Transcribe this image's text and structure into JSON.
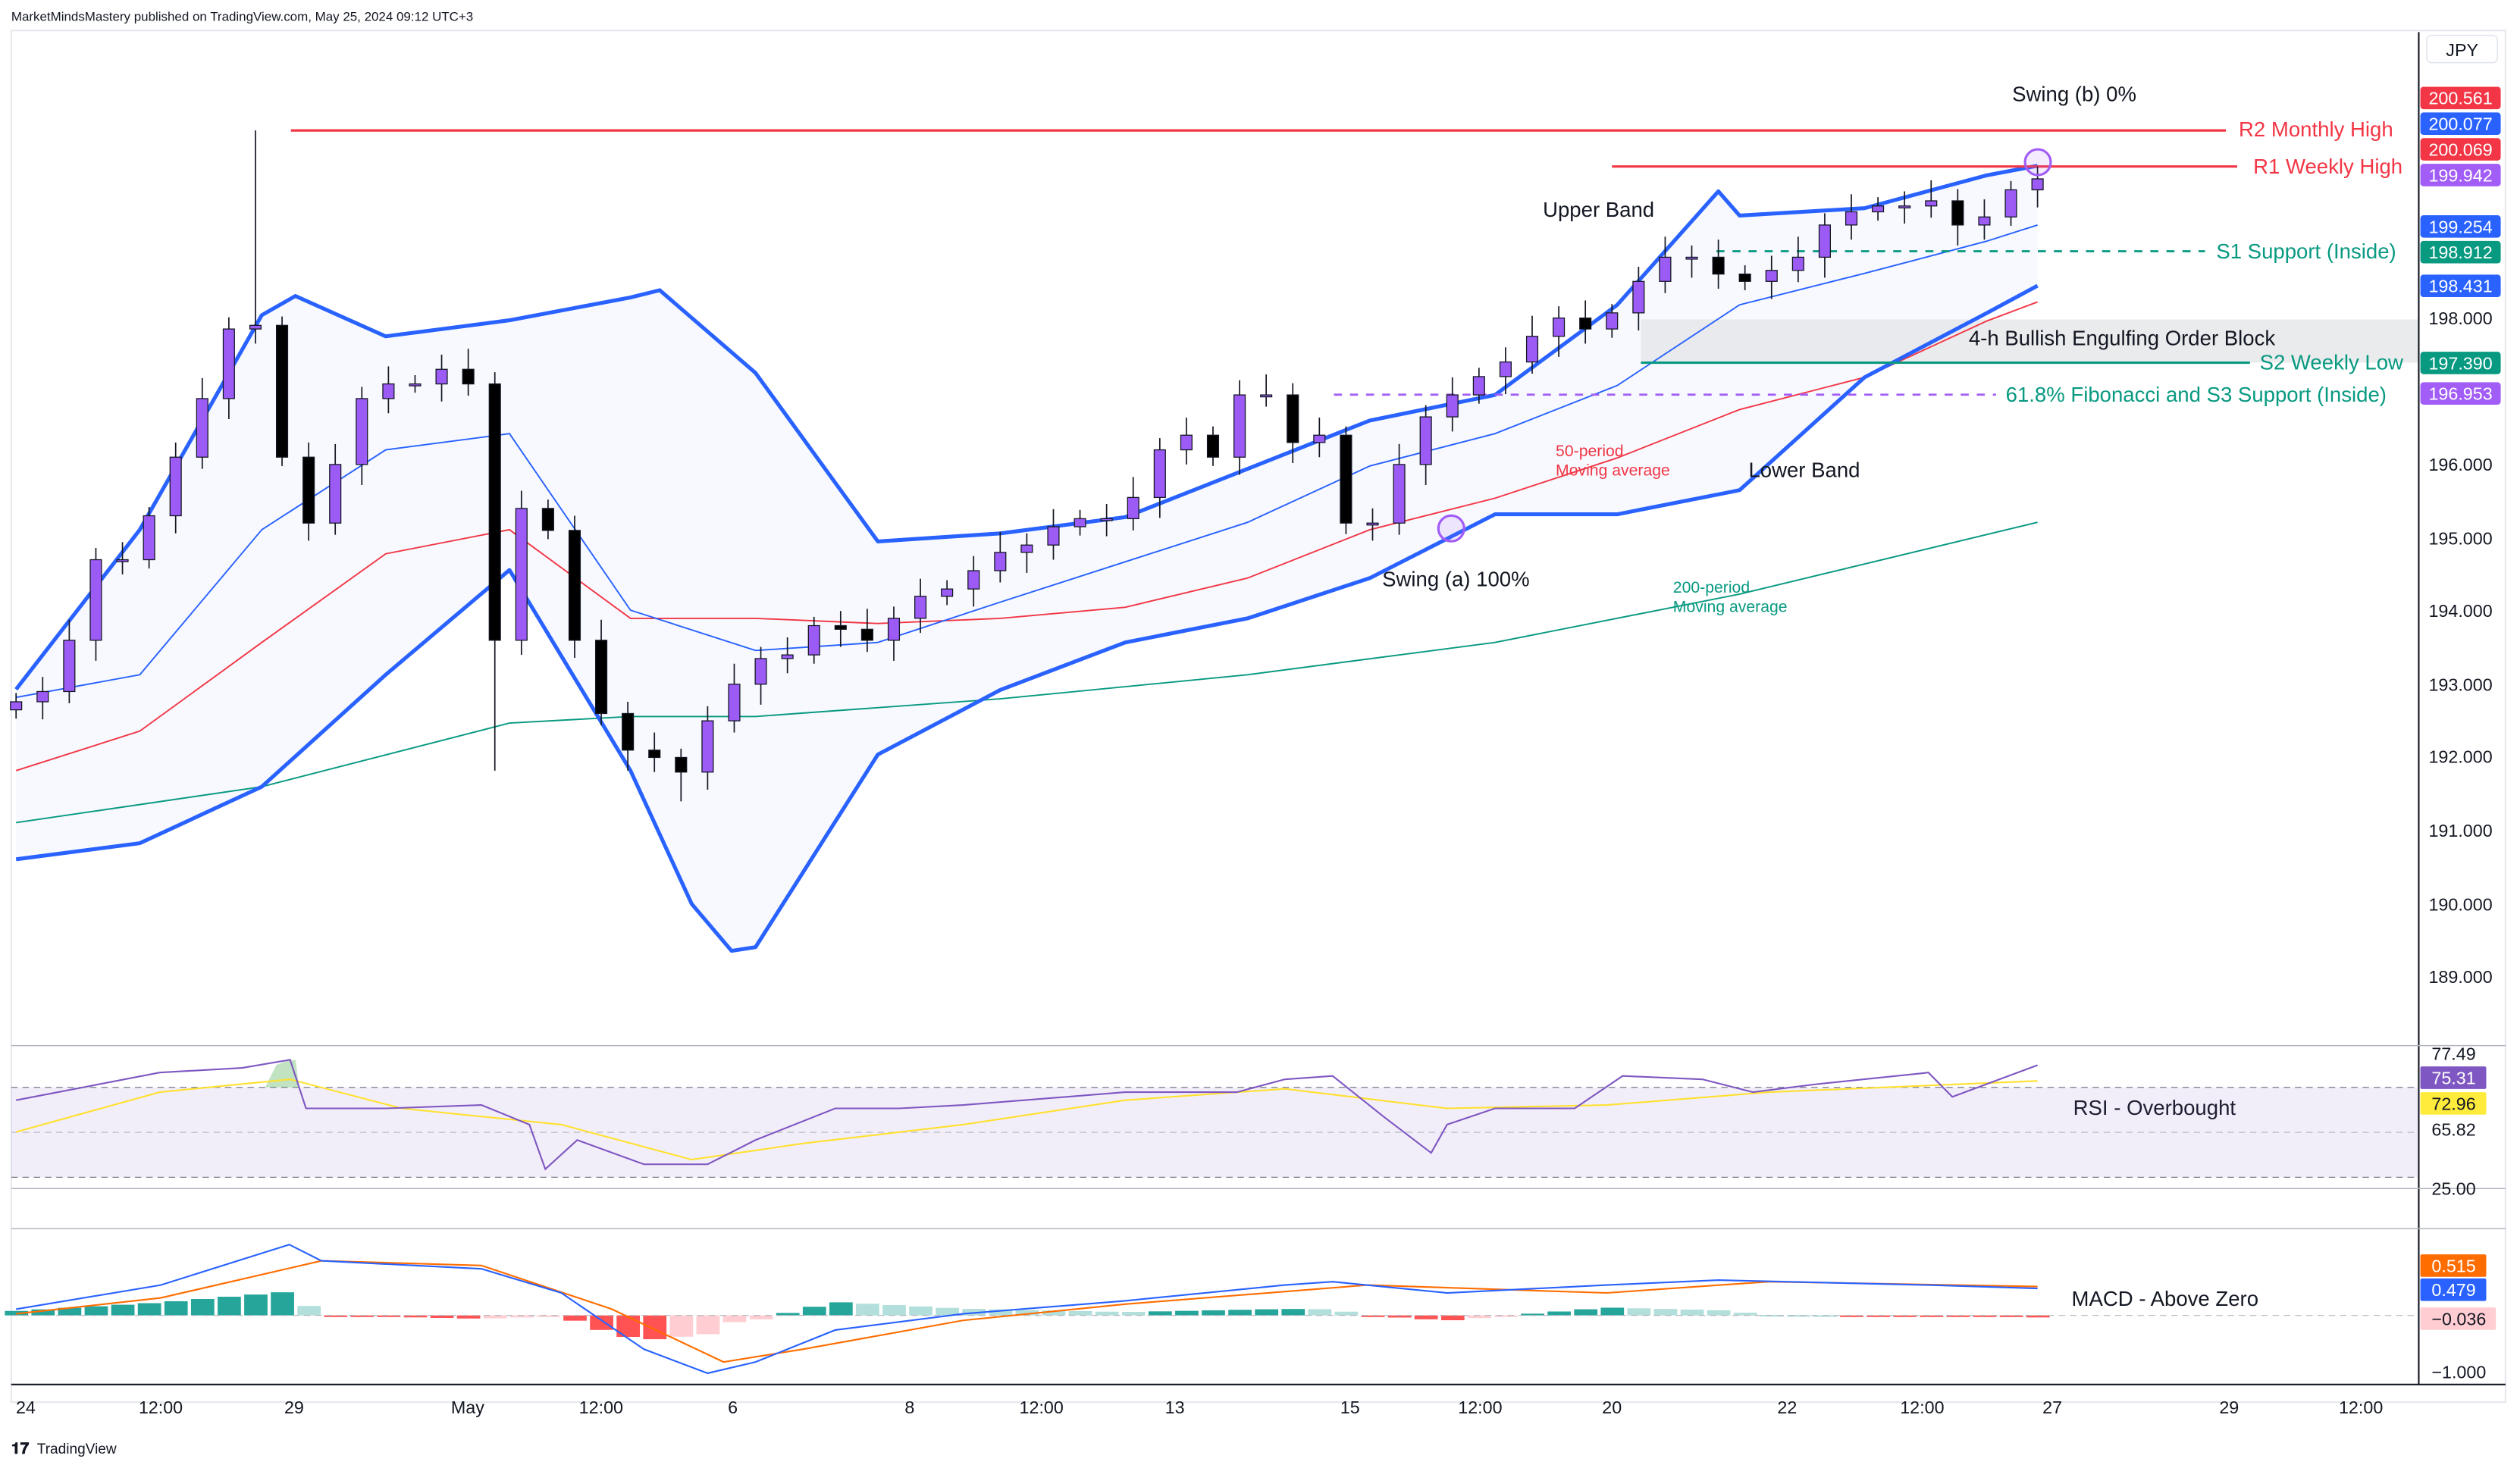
{
  "header": {
    "published": "MarketMindsMastery published on TradingView.com, May 25, 2024 09:12 UTC+3"
  },
  "footer": {
    "brand": "TradingView",
    "logo": "tradingview-logo-icon"
  },
  "price_axis": {
    "currency": "JPY",
    "ticks": [
      "198.000",
      "196.000",
      "195.000",
      "194.000",
      "193.000",
      "192.000",
      "191.000",
      "190.000",
      "189.000"
    ],
    "tags": [
      {
        "text": "200.561",
        "color": "#f23645"
      },
      {
        "text": "200.077",
        "color": "#2962ff"
      },
      {
        "text": "200.069",
        "color": "#f23645"
      },
      {
        "text": "199.942",
        "color": "#a25df7"
      },
      {
        "text": "199.254",
        "color": "#2962ff"
      },
      {
        "text": "198.912",
        "color": "#089981"
      },
      {
        "text": "198.431",
        "color": "#2962ff"
      },
      {
        "text": "197.390",
        "color": "#089981"
      },
      {
        "text": "196.953",
        "color": "#a25df7"
      }
    ]
  },
  "time_axis": [
    "24",
    "12:00",
    "29",
    "May",
    "12:00",
    "6",
    "8",
    "12:00",
    "13",
    "15",
    "12:00",
    "20",
    "22",
    "12:00",
    "27",
    "29",
    "12:00"
  ],
  "annotations": {
    "r2": "R2 Monthly High",
    "r1": "R1 Weekly High",
    "s1": "S1 Support (Inside)",
    "order_block": "4-h Bullish Engulfing Order Block",
    "s2": "S2 Weekly Low",
    "fib": "61.8% Fibonacci and S3 Support (Inside)",
    "upper_band": "Upper Band",
    "lower_band": "Lower Band",
    "swing_a": "Swing (a) 100%",
    "swing_b": "Swing (b) 0%",
    "ma50_1": "50-period",
    "ma50_2": "Moving average",
    "ma200_1": "200-period",
    "ma200_2": "Moving average",
    "rsi": "RSI - Overbought",
    "macd": "MACD - Above Zero"
  },
  "rsi_axis": {
    "ticks": [
      "77.49",
      "65.82",
      "25.00"
    ],
    "tags": [
      {
        "text": "75.31",
        "color": "#7e57c2"
      },
      {
        "text": "72.96",
        "color": "#ffeb3b"
      }
    ]
  },
  "macd_axis": {
    "ticks": [
      "−1.000"
    ],
    "tags": [
      {
        "text": "0.515",
        "color": "#ff6d00"
      },
      {
        "text": "0.479",
        "color": "#2962ff"
      },
      {
        "text": "−0.036",
        "color": "#ffcdd2"
      }
    ]
  },
  "chart_data": {
    "type": "candlestick",
    "symbol_currency": "JPY",
    "ylim": [
      188.5,
      201.3
    ],
    "levels": {
      "r2": 200.561,
      "r1": 200.069,
      "s1": 198.912,
      "s2": 197.39,
      "fib": 196.953,
      "order_block": [
        197.39,
        197.98
      ]
    },
    "closes": [
      192.76,
      192.9,
      193.6,
      194.7,
      194.7,
      195.3,
      196.1,
      196.9,
      197.85,
      197.9,
      196.1,
      195.2,
      196.0,
      196.9,
      197.1,
      197.1,
      197.3,
      197.1,
      193.6,
      195.4,
      195.1,
      193.6,
      192.6,
      192.1,
      192.0,
      191.8,
      192.5,
      193.0,
      193.35,
      193.4,
      193.8,
      193.75,
      193.6,
      193.9,
      194.2,
      194.3,
      194.55,
      194.8,
      194.9,
      195.15,
      195.26,
      195.26,
      195.55,
      196.2,
      196.4,
      196.1,
      196.95,
      196.95,
      196.3,
      196.4,
      195.2,
      195.2,
      196.0,
      196.65,
      196.95,
      197.2,
      197.4,
      197.75,
      198.0,
      197.85,
      198.07,
      198.5,
      198.83,
      198.83,
      198.6,
      198.5,
      198.65,
      198.83,
      199.27,
      199.45,
      199.53,
      199.53,
      199.6,
      199.27,
      199.38,
      199.75,
      199.9
    ],
    "first_open": 192.65,
    "wick_extremes": [
      {
        "i": 9,
        "high": 200.561
      },
      {
        "i": 18,
        "low": 191.82
      },
      {
        "i": 25,
        "low": 191.4
      },
      {
        "i": 50,
        "low": 195.05
      },
      {
        "i": 76,
        "high": 200.069
      }
    ],
    "bollinger": {
      "upper": [
        [
          0,
          192.93
        ],
        [
          4.65,
          195.11
        ],
        [
          9.24,
          198.04
        ],
        [
          10.5,
          198.3
        ],
        [
          13.9,
          197.75
        ],
        [
          18.55,
          197.97
        ],
        [
          23.1,
          198.28
        ],
        [
          24.2,
          198.38
        ],
        [
          27.8,
          197.25
        ],
        [
          32.4,
          194.95
        ],
        [
          37,
          195.06
        ],
        [
          41.7,
          195.28
        ],
        [
          46.3,
          195.94
        ],
        [
          50.9,
          196.6
        ],
        [
          55.6,
          196.95
        ],
        [
          60.2,
          198.18
        ],
        [
          64,
          199.73
        ],
        [
          64.8,
          199.4
        ],
        [
          69.5,
          199.5
        ],
        [
          74.1,
          199.95
        ],
        [
          76,
          200.08
        ]
      ],
      "middle": [
        [
          0,
          192.82
        ],
        [
          4.65,
          193.13
        ],
        [
          9.24,
          195.11
        ],
        [
          13.9,
          196.2
        ],
        [
          18.55,
          196.42
        ],
        [
          23.1,
          194.01
        ],
        [
          27.8,
          193.46
        ],
        [
          32.4,
          193.57
        ],
        [
          37,
          194.12
        ],
        [
          41.7,
          194.67
        ],
        [
          46.3,
          195.21
        ],
        [
          50.9,
          195.98
        ],
        [
          55.6,
          196.42
        ],
        [
          60.2,
          197.08
        ],
        [
          64.8,
          198.18
        ],
        [
          69.5,
          198.61
        ],
        [
          74.1,
          199.05
        ],
        [
          76,
          199.27
        ]
      ],
      "lower": [
        [
          0,
          190.61
        ],
        [
          4.65,
          190.83
        ],
        [
          9.24,
          191.6
        ],
        [
          13.9,
          193.13
        ],
        [
          18.55,
          194.56
        ],
        [
          23.1,
          191.82
        ],
        [
          25.4,
          190.0
        ],
        [
          26.9,
          189.36
        ],
        [
          27.8,
          189.41
        ],
        [
          32.4,
          192.04
        ],
        [
          37,
          192.92
        ],
        [
          41.7,
          193.57
        ],
        [
          46.3,
          193.9
        ],
        [
          50.9,
          194.45
        ],
        [
          55.6,
          195.32
        ],
        [
          60.2,
          195.32
        ],
        [
          64.8,
          195.65
        ],
        [
          69.5,
          197.19
        ],
        [
          74.1,
          198.07
        ],
        [
          76,
          198.44
        ]
      ]
    },
    "ma50": [
      [
        0,
        191.82
      ],
      [
        4.65,
        192.36
      ],
      [
        9.24,
        193.57
      ],
      [
        13.9,
        194.78
      ],
      [
        18.55,
        195.11
      ],
      [
        23.1,
        193.9
      ],
      [
        27.8,
        193.9
      ],
      [
        32.4,
        193.83
      ],
      [
        37,
        193.9
      ],
      [
        41.7,
        194.05
      ],
      [
        46.3,
        194.45
      ],
      [
        50.9,
        195.11
      ],
      [
        55.6,
        195.54
      ],
      [
        60.2,
        196.09
      ],
      [
        64.8,
        196.75
      ],
      [
        69.5,
        197.19
      ],
      [
        74.1,
        197.96
      ],
      [
        76,
        198.22
      ]
    ],
    "ma200": [
      [
        0,
        191.11
      ],
      [
        9.24,
        191.6
      ],
      [
        18.55,
        192.47
      ],
      [
        23.1,
        192.56
      ],
      [
        27.8,
        192.56
      ],
      [
        37,
        192.8
      ],
      [
        46.3,
        193.13
      ],
      [
        55.6,
        193.57
      ],
      [
        64.8,
        194.23
      ],
      [
        76,
        195.21
      ]
    ],
    "rsi": [
      [
        0,
        70.1
      ],
      [
        5.4,
        74.2
      ],
      [
        8.5,
        74.9
      ],
      [
        10.3,
        76.1
      ],
      [
        10.9,
        68.9
      ],
      [
        13.9,
        68.9
      ],
      [
        17.5,
        69.4
      ],
      [
        19.3,
        66.5
      ],
      [
        19.9,
        59.9
      ],
      [
        21.1,
        64.2
      ],
      [
        23.6,
        60.6
      ],
      [
        26,
        60.6
      ],
      [
        27.8,
        64.2
      ],
      [
        30.8,
        68.9
      ],
      [
        33.2,
        68.9
      ],
      [
        35.6,
        69.4
      ],
      [
        41.7,
        71.3
      ],
      [
        45.9,
        71.3
      ],
      [
        47.7,
        73.2
      ],
      [
        49.5,
        73.7
      ],
      [
        51.4,
        67.7
      ],
      [
        53.2,
        62.3
      ],
      [
        53.8,
        66.5
      ],
      [
        55.6,
        68.9
      ],
      [
        58.6,
        68.9
      ],
      [
        60.4,
        73.7
      ],
      [
        63.4,
        73.2
      ],
      [
        65.3,
        71.3
      ],
      [
        67.7,
        72.5
      ],
      [
        71.9,
        74.2
      ],
      [
        72.8,
        70.6
      ],
      [
        76,
        75.31
      ]
    ],
    "rsi_ma": [
      [
        0,
        65.4
      ],
      [
        5.4,
        71.3
      ],
      [
        10.3,
        73.2
      ],
      [
        14.5,
        68.9
      ],
      [
        20.5,
        66.5
      ],
      [
        25.4,
        61.3
      ],
      [
        29.6,
        63.7
      ],
      [
        35.6,
        66.5
      ],
      [
        41.7,
        70.1
      ],
      [
        47.7,
        71.8
      ],
      [
        53.8,
        68.9
      ],
      [
        59.8,
        69.4
      ],
      [
        65.9,
        71.3
      ],
      [
        76,
        72.96
      ]
    ],
    "rsi_band": [
      65.82,
      77.49
    ],
    "macd": [
      [
        0,
        0.11
      ],
      [
        5.44,
        0.54
      ],
      [
        10.27,
        1.26
      ],
      [
        11.48,
        0.97
      ],
      [
        17.5,
        0.83
      ],
      [
        20.5,
        0.4
      ],
      [
        23.6,
        -0.6
      ],
      [
        26,
        -1.03
      ],
      [
        27.8,
        -0.83
      ],
      [
        30.8,
        -0.26
      ],
      [
        35.6,
        0.03
      ],
      [
        41.7,
        0.26
      ],
      [
        47.7,
        0.54
      ],
      [
        49.5,
        0.6
      ],
      [
        53.8,
        0.4
      ],
      [
        59.8,
        0.54
      ],
      [
        64,
        0.63
      ],
      [
        71.9,
        0.54
      ],
      [
        76,
        0.479
      ]
    ],
    "signal": [
      [
        0,
        0.03
      ],
      [
        5.44,
        0.31
      ],
      [
        11.48,
        0.97
      ],
      [
        17.5,
        0.89
      ],
      [
        22.4,
        0.11
      ],
      [
        26.6,
        -0.83
      ],
      [
        29.6,
        -0.6
      ],
      [
        35.6,
        -0.09
      ],
      [
        41.7,
        0.2
      ],
      [
        50.8,
        0.54
      ],
      [
        59.8,
        0.4
      ],
      [
        65.9,
        0.6
      ],
      [
        76,
        0.515
      ]
    ],
    "colors": {
      "bull": "#9c5bf5",
      "bear": "#000000",
      "band": "#2962ff",
      "ma50": "#f23645",
      "ma200": "#089981",
      "rsi": "#7e57c2",
      "rsi_ma": "#ffe030",
      "macd": "#2962ff",
      "signal": "#ff6d00"
    }
  }
}
